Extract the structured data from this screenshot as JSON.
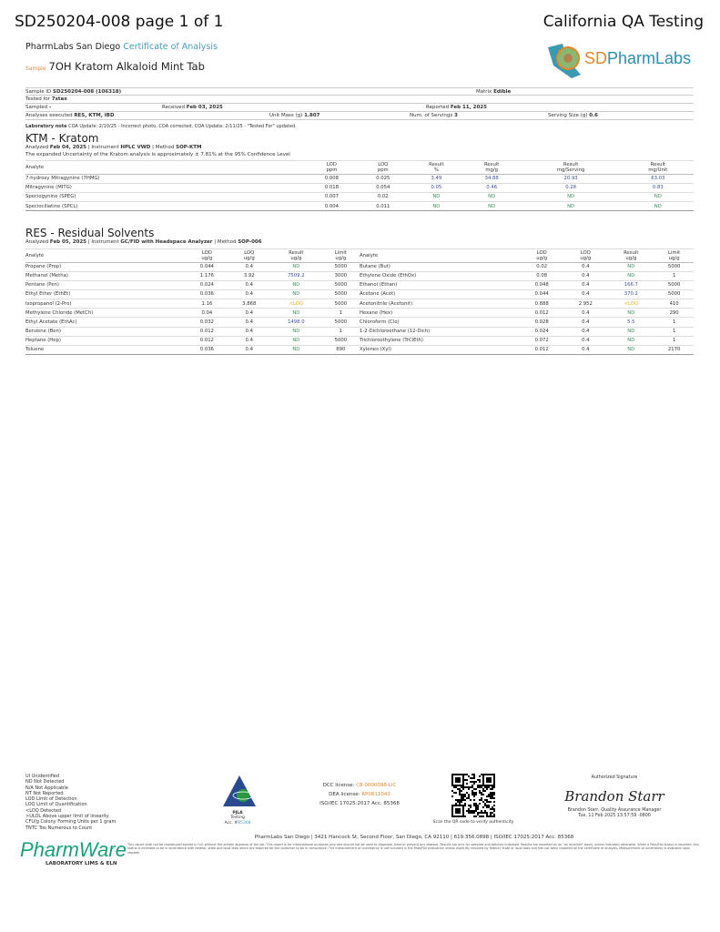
{
  "header": {
    "title": "SD250204-008 page 1 of 1",
    "lab_name": "California QA Testing",
    "company": "PharmLabs San Diego",
    "doc_type": "Certificate of Analysis",
    "sample_label": "Sample",
    "sample_name": "7OH Kratom Alkaloid Mint Tab",
    "logo_text_sd": "SD",
    "logo_text_rest": "PharmLabs"
  },
  "info": {
    "sample_id_label": "Sample ID",
    "sample_id": "SD250204-008 (106318)",
    "matrix_label": "Matrix",
    "matrix": "Edible",
    "tested_for_label": "Tested for",
    "tested_for": "7stax",
    "sampled_label": "Sampled",
    "sampled": "-",
    "received_label": "Received",
    "received": "Feb 03, 2025",
    "reported_label": "Reported",
    "reported": "Feb 11, 2025",
    "analyses_label": "Analyses executed",
    "analyses": "RES, KTM, IBD",
    "unit_mass_label": "Unit Mass (g)",
    "unit_mass": "1.807",
    "servings_label": "Num. of Servings",
    "servings": "3",
    "serving_size_label": "Serving Size (g)",
    "serving_size": "0.6"
  },
  "lab_note": {
    "label": "Laboratory note",
    "text": "COA Update: 2/10/25 - Incorrect photo, COA corrected. COA Update: 2/11/25 - \"Tested For\" updated."
  },
  "ktm": {
    "title": "KTM - Kratom",
    "analyzed_label": "Analyzed",
    "analyzed": "Feb 04, 2025",
    "instrument_label": "Instrument",
    "instrument": "HPLC VWD",
    "method_label": "Method",
    "method": "SOP-KTM",
    "uncertainty": "The expanded Uncertainty of the Kratom analysis is approximately ± 7.81% at the 95% Confidence Level",
    "headers": [
      [
        "Analyte",
        ""
      ],
      [
        "LOD",
        "ppm"
      ],
      [
        "LOQ",
        "ppm"
      ],
      [
        "Result",
        "%"
      ],
      [
        "Result",
        "mg/g"
      ],
      [
        "Result",
        "mg/Serving"
      ],
      [
        "Result",
        "mg/Unit"
      ]
    ],
    "rows": [
      [
        "7-hydroxy Mitragynine (7HMG)",
        "0.008",
        "0.025",
        "3.49",
        "34.88",
        "20.93",
        "63.03"
      ],
      [
        "Mitragynine (MITG)",
        "0.018",
        "0.054",
        "0.05",
        "0.46",
        "0.28",
        "0.83"
      ],
      [
        "Speciogynine (SPEG)",
        "0.007",
        "0.02",
        "ND",
        "ND",
        "ND",
        "ND"
      ],
      [
        "Speciociliatine (SPCL)",
        "0.004",
        "0.011",
        "ND",
        "ND",
        "ND",
        "ND"
      ]
    ]
  },
  "res": {
    "title": "RES - Residual Solvents",
    "analyzed_label": "Analyzed",
    "analyzed": "Feb 05, 2025",
    "instrument_label": "Instrument",
    "instrument": "GC/FID with Headspace Analyzer",
    "method_label": "Method",
    "method": "SOP-006",
    "headers": [
      [
        "Analyte",
        ""
      ],
      [
        "LOD",
        "ug/g"
      ],
      [
        "LOQ",
        "ug/g"
      ],
      [
        "Result",
        "ug/g"
      ],
      [
        "Limit",
        "ug/g"
      ]
    ],
    "left": [
      [
        "Propane (Prop)",
        "0.044",
        "0.4",
        "ND",
        "5000"
      ],
      [
        "Methanol (Metha)",
        "1.176",
        "3.92",
        "7509.2",
        "3000"
      ],
      [
        "Pentane (Pen)",
        "0.024",
        "0.4",
        "ND",
        "5000"
      ],
      [
        "Ethyl Ether (EthEt)",
        "0.036",
        "0.4",
        "ND",
        "5000"
      ],
      [
        "Isopropanol (2-Pro)",
        "1.16",
        "3.868",
        "<LOQ",
        "5000"
      ],
      [
        "Methylene Chloride (MetCh)",
        "0.04",
        "0.4",
        "ND",
        "1"
      ],
      [
        "Ethyl Acetate (EthAc)",
        "0.032",
        "0.4",
        "1498.0",
        "5000"
      ],
      [
        "Benzene (Ben)",
        "0.012",
        "0.4",
        "ND",
        "1"
      ],
      [
        "Heptane (Hep)",
        "0.012",
        "0.4",
        "ND",
        "5000"
      ],
      [
        "Toluene",
        "0.036",
        "0.4",
        "ND",
        "890"
      ]
    ],
    "right": [
      [
        "Butane (But)",
        "0.02",
        "0.4",
        "ND",
        "5000"
      ],
      [
        "Ethylene Oxide (EthOx)",
        "0.08",
        "0.4",
        "ND",
        "1"
      ],
      [
        "Ethanol (Ethan)",
        "0.048",
        "0.4",
        "166.7",
        "5000"
      ],
      [
        "Acetone (Acet)",
        "0.044",
        "0.4",
        "370.2",
        "5000"
      ],
      [
        "Acetonitrile (Acetonit)",
        "0.888",
        "2.952",
        "<LOQ",
        "410"
      ],
      [
        "Hexane (Hex)",
        "0.012",
        "0.4",
        "ND",
        "290"
      ],
      [
        "Chloroform (Clo)",
        "0.028",
        "0.4",
        "5.5",
        "1"
      ],
      [
        "1-2-Dichloroethane (12-Dich)",
        "0.024",
        "0.4",
        "ND",
        "1"
      ],
      [
        "Trichloroethylene (TrClEth)",
        "0.072",
        "0.4",
        "ND",
        "1"
      ],
      [
        "Xylenes (Xyl)",
        "0.012",
        "0.4",
        "ND",
        "2170"
      ]
    ]
  },
  "legend": [
    "UI Unidentified",
    "ND Not Detected",
    "N/A Not Applicable",
    "NT Not Reported",
    "LOD Limit of Detection",
    "LOQ Limit of Quantification",
    "<LOQ Detected",
    ">ULOL Above upper limit of linearity",
    "CFU/g Colony Forming Units per 1 gram",
    "TNTC Too Numerous to Count"
  ],
  "accreditation": {
    "org": "PJLA",
    "sub": "Testing",
    "acc_label": "Acc. #",
    "acc": "85368"
  },
  "licenses": {
    "dcc_label": "DCC license:",
    "dcc": "C8-0000098-LIC",
    "dea_label": "DEA license:",
    "dea": "RP0611043",
    "iso": "ISO/IEC 17025:2017 Acc. 85368"
  },
  "qr": {
    "caption": "Scan the QR code to verify authenticity"
  },
  "signature": {
    "label": "Authorized Signature",
    "name_script": "Brandon Starr",
    "signer": "Brandon Starr, Quality Assurance Manager",
    "date": "Tue, 11 Feb 2025 13:57:59 -0800"
  },
  "footer": {
    "address": "PharmLabs San Diego | 3421 Hancock St, Second Floor, San Diego, CA 92110 | 619.356.0898 | ISO/IEC 17025:2017 Acc. 85368",
    "disclaimer": "This report shall not be reproduced except in full, without the written approval of the lab. This report is for informational purposes only and should not be used to diagnose, treat or prevent any disease. Results are only for samples and batches indicated. Results are reported on an \"as received\" basis, unless indicated otherwise. When a Pass/Fail status is reported, this status is intended to be in accordance with federal, state and local laws which are required for the customer to be in compliance. The measurement of uncertainty is not included in the Pass/Fail evaluation unless explicitly required by federal, state or local laws and has not been reported on the certificate of analysis. Measurement of uncertainty is available upon request.",
    "pharmware": "PharmWare",
    "pharmware_sub": "LABORATORY LIMS & ELN"
  },
  "colors": {
    "nd": "#3a8a5a",
    "value": "#3b4ea0",
    "loq": "#e8b020",
    "accent": "#4a9bb8",
    "orange": "#e0862a"
  }
}
